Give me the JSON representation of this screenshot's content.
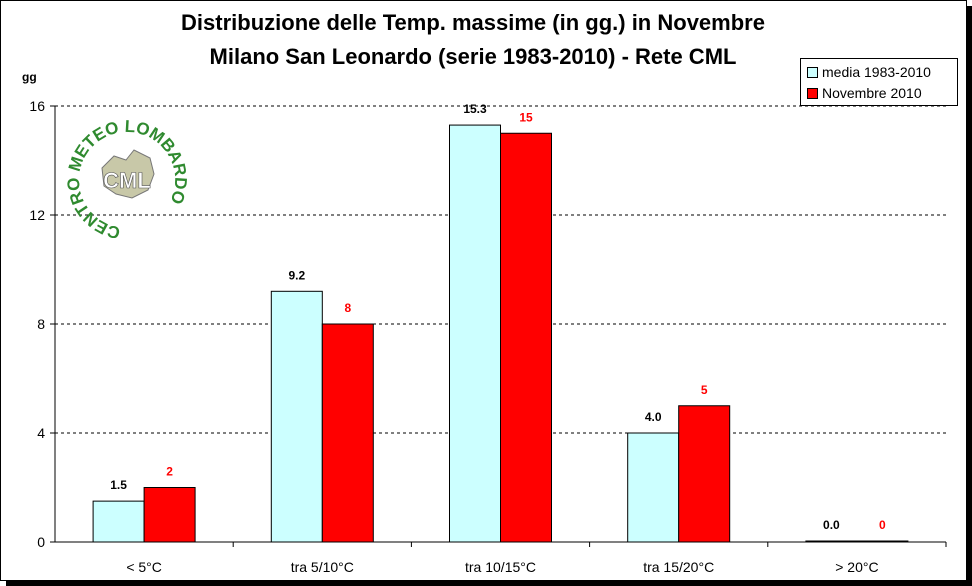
{
  "chart_data": {
    "type": "bar",
    "title": "Distribuzione delle Temp. massime (in gg.) in Novembre",
    "subtitle": "Milano San Leonardo (serie 1983-2010) - Rete CML",
    "ylabel": "gg",
    "ylim": [
      0,
      16
    ],
    "yticks": [
      0,
      4,
      8,
      12,
      16
    ],
    "grid": true,
    "legend_position": "top-right",
    "categories": [
      "< 5°C",
      "tra 5/10°C",
      "tra 10/15°C",
      "tra 15/20°C",
      "> 20°C"
    ],
    "series": [
      {
        "name": "media 1983-2010",
        "values": [
          1.5,
          9.2,
          15.3,
          4.0,
          0.0
        ],
        "labels": [
          "1.5",
          "9.2",
          "15.3",
          "4.0",
          "0.0"
        ],
        "color": "#ccffff",
        "label_color": "#000000"
      },
      {
        "name": "Novembre 2010",
        "values": [
          2,
          8,
          15,
          5,
          0
        ],
        "labels": [
          "2",
          "8",
          "15",
          "5",
          "0"
        ],
        "color": "#ff0000",
        "label_color": "#ff0000"
      }
    ]
  },
  "logo": {
    "ring_text": "CENTRO METEO LOMBARDO",
    "abbr": "CML",
    "color": "#2f8a2f"
  }
}
